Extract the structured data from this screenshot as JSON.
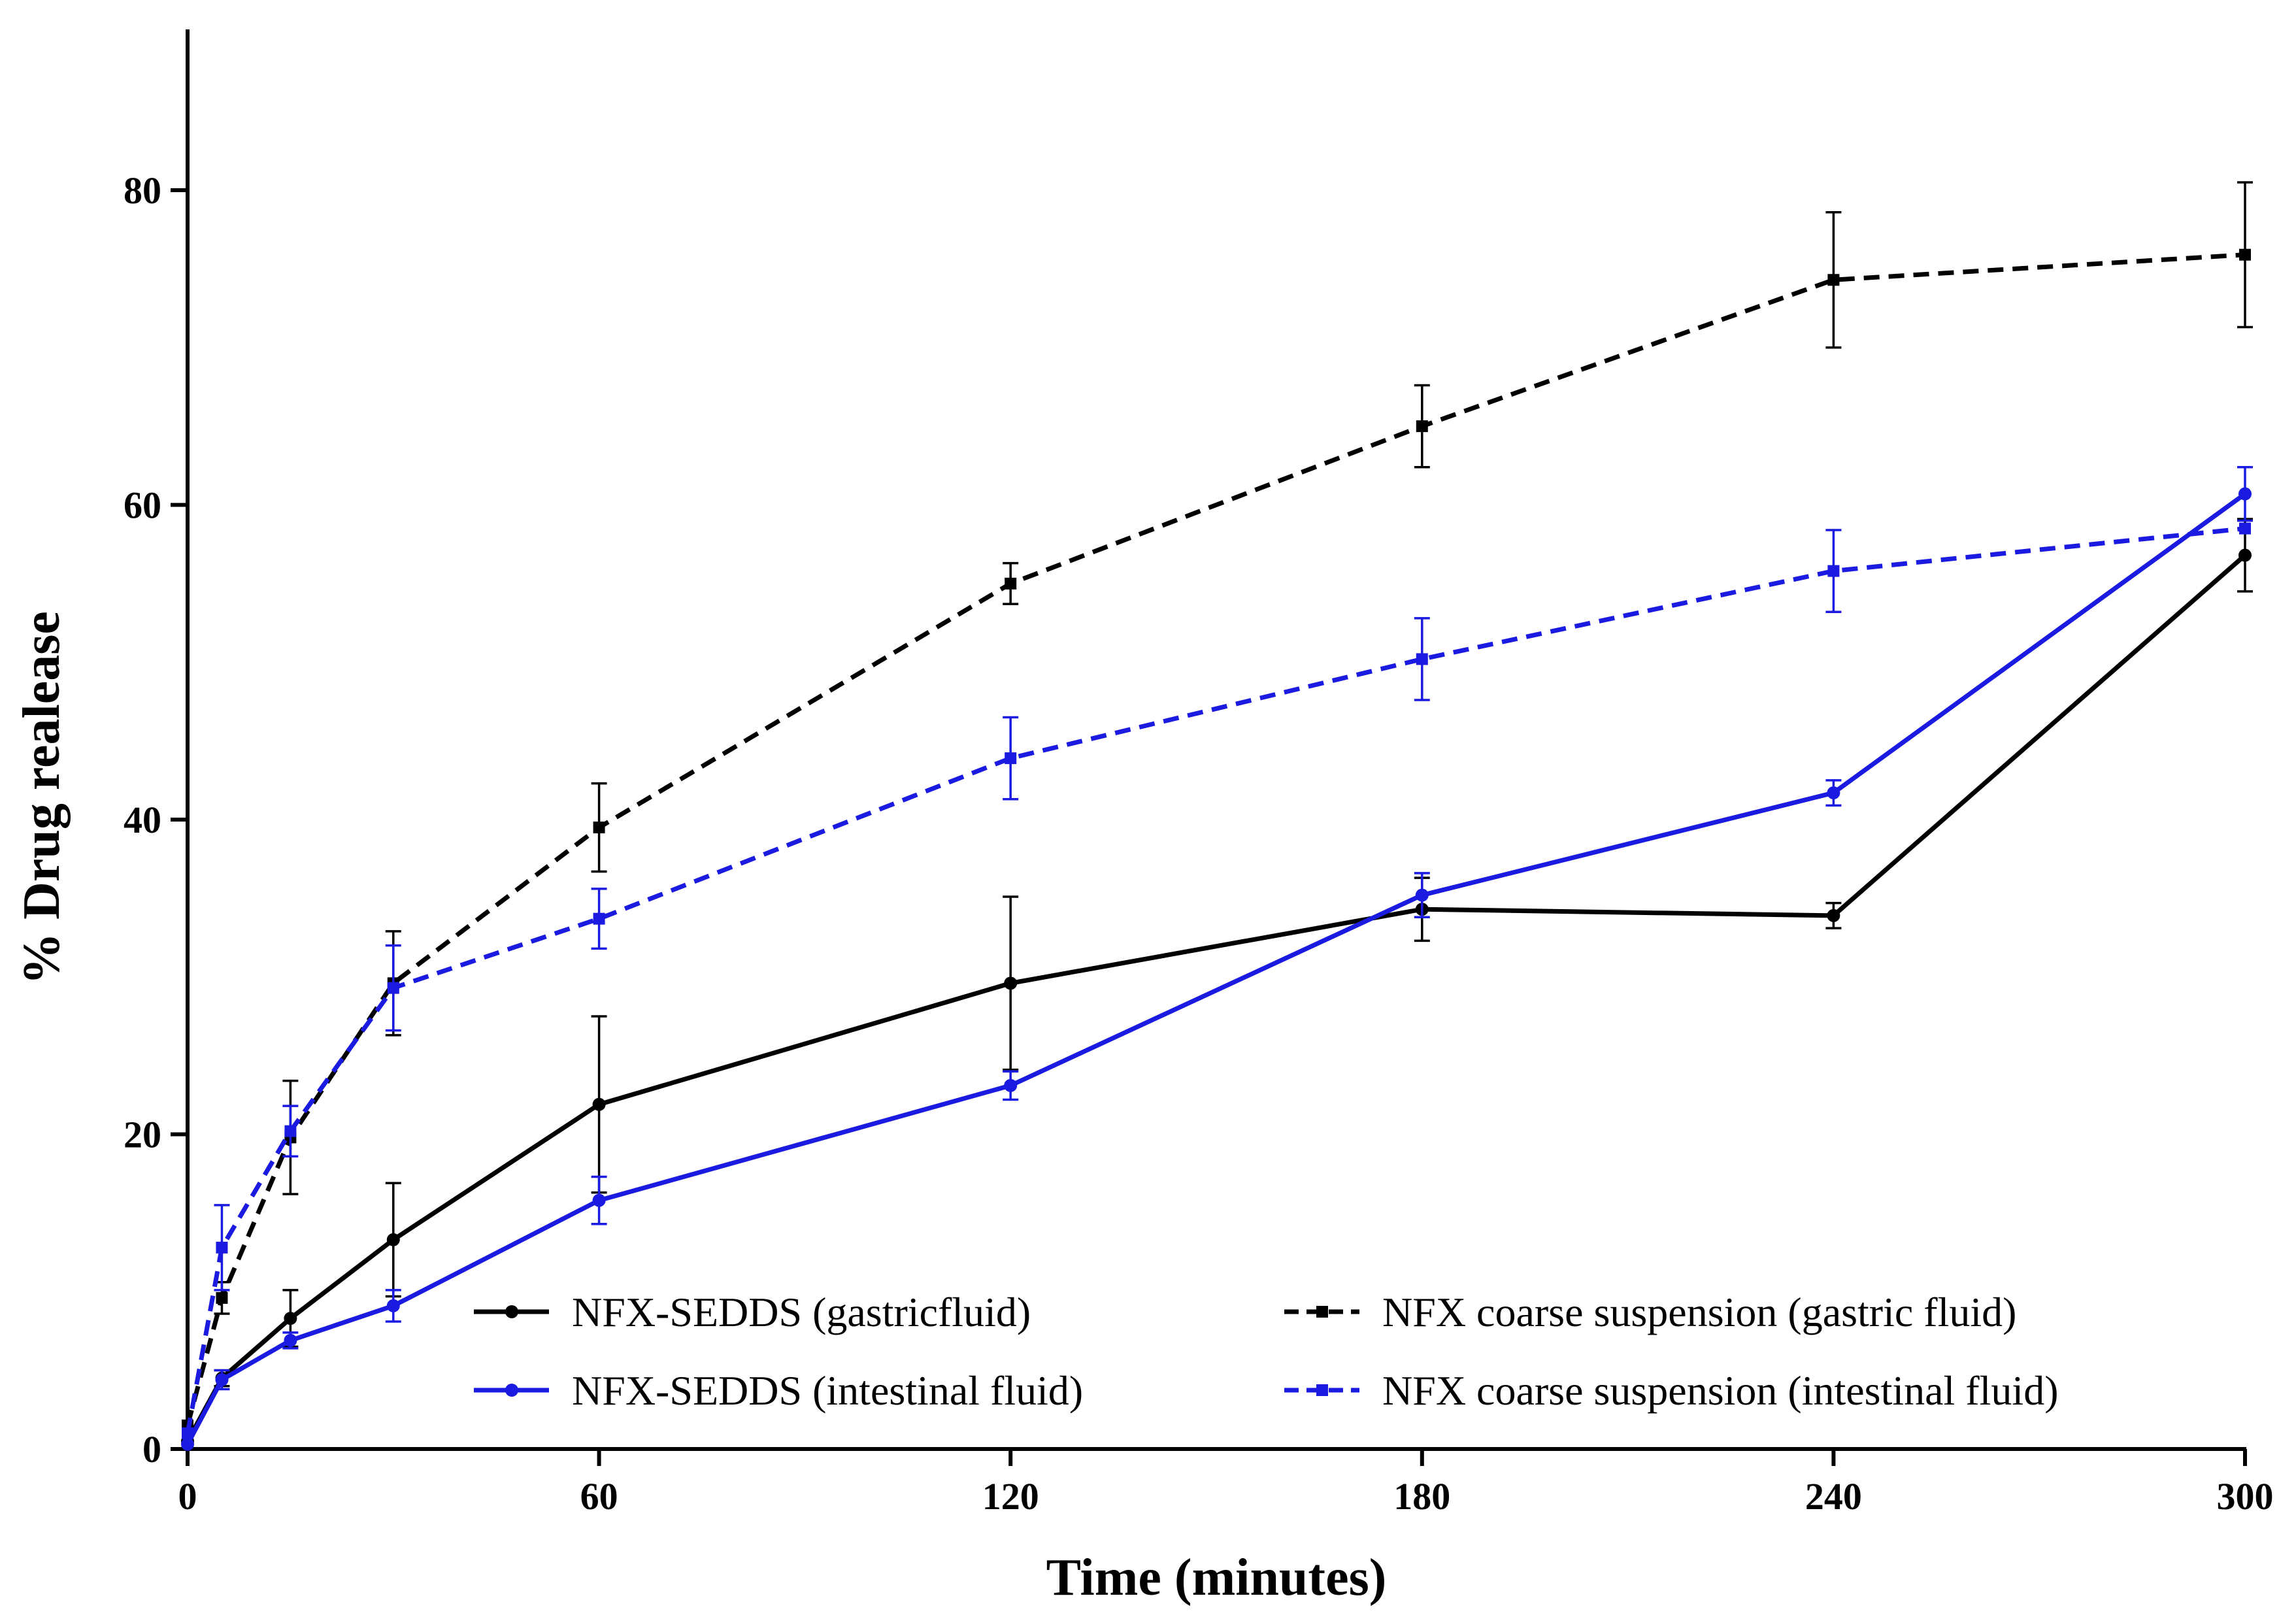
{
  "chart_data": {
    "type": "line",
    "title": "",
    "xlabel": "Time (minutes)",
    "ylabel": "% Drug realease",
    "xlim": [
      0,
      300
    ],
    "ylim": [
      0,
      90
    ],
    "x_ticks": [
      0,
      60,
      120,
      180,
      240,
      300
    ],
    "y_ticks": [
      0,
      20,
      40,
      60,
      80
    ],
    "x_tick_labels": [
      "0",
      "60",
      "120",
      "180",
      "240",
      "300"
    ],
    "y_tick_labels": [
      "0",
      "20",
      "40",
      "60",
      "80"
    ],
    "grid": false,
    "legend_position": "bottom-right",
    "series": [
      {
        "name": "NFX-SEDDS (gastricfluid)",
        "color": "#000000",
        "line_style": "solid",
        "marker": "circle",
        "x": [
          0,
          5,
          15,
          30,
          60,
          120,
          180,
          240,
          300
        ],
        "y": [
          0.5,
          4.5,
          8.3,
          13.3,
          21.9,
          29.6,
          34.3,
          33.9,
          56.8
        ],
        "error": [
          0,
          0.5,
          1.8,
          3.6,
          5.6,
          5.5,
          2.0,
          0.8,
          2.3
        ]
      },
      {
        "name": "NFX-SEDDS (intestinal fluid)",
        "color": "#1a1ae0",
        "line_style": "solid",
        "marker": "circle",
        "x": [
          0,
          5,
          15,
          30,
          60,
          120,
          180,
          240,
          300
        ],
        "y": [
          0.3,
          4.4,
          6.9,
          9.1,
          15.8,
          23.1,
          35.2,
          41.7,
          60.7
        ],
        "error": [
          0,
          0.6,
          0.5,
          1.0,
          1.5,
          0.9,
          1.4,
          0.8,
          1.7
        ]
      },
      {
        "name": "NFX coarse suspension (gastric fluid)",
        "color": "#000000",
        "line_style": "dashed",
        "marker": "square",
        "x": [
          0,
          5,
          15,
          30,
          60,
          120,
          180,
          240,
          300
        ],
        "y": [
          1.5,
          9.6,
          19.8,
          29.6,
          39.5,
          55.0,
          65.0,
          74.3,
          75.9
        ],
        "error": [
          0,
          1.0,
          3.6,
          3.3,
          2.8,
          1.3,
          2.6,
          4.3,
          4.6
        ]
      },
      {
        "name": "NFX coarse suspension (intestinal fluid)",
        "color": "#1a1ae0",
        "line_style": "dashed",
        "marker": "square",
        "x": [
          0,
          5,
          15,
          30,
          60,
          120,
          180,
          240,
          300
        ],
        "y": [
          1.0,
          12.8,
          20.2,
          29.3,
          33.7,
          43.9,
          50.2,
          55.8,
          58.5
        ],
        "error": [
          0,
          2.7,
          1.6,
          2.7,
          1.9,
          2.6,
          2.6,
          2.6,
          0.0
        ]
      }
    ]
  }
}
